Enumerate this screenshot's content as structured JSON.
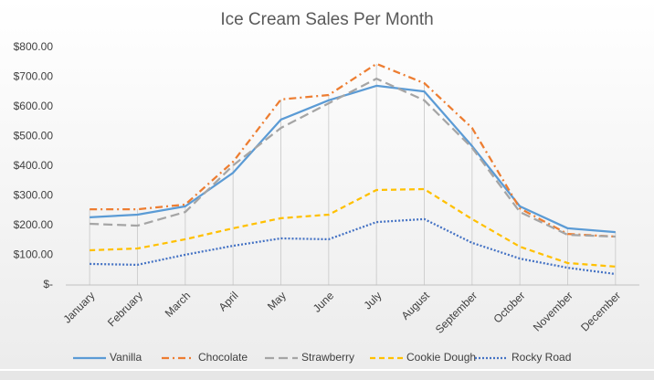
{
  "chart_data": {
    "type": "line",
    "title": "Ice Cream Sales Per Month",
    "categories": [
      "January",
      "February",
      "March",
      "April",
      "May",
      "June",
      "July",
      "August",
      "September",
      "October",
      "November",
      "December"
    ],
    "series": [
      {
        "name": "Vanilla",
        "color": "#5b9bd5",
        "dash": "solid",
        "values": [
          228,
          237,
          265,
          378,
          557,
          622,
          671,
          652,
          468,
          265,
          191,
          178
        ]
      },
      {
        "name": "Chocolate",
        "color": "#ed7d31",
        "dash": "dash-dot",
        "values": [
          255,
          255,
          271,
          415,
          625,
          640,
          745,
          680,
          529,
          258,
          172,
          163
        ]
      },
      {
        "name": "Strawberry",
        "color": "#a5a5a5",
        "dash": "long-dash",
        "values": [
          206,
          200,
          246,
          403,
          529,
          612,
          695,
          622,
          462,
          246,
          169,
          163
        ]
      },
      {
        "name": "Cookie Dough",
        "color": "#ffc000",
        "dash": "dash",
        "values": [
          117,
          123,
          154,
          191,
          225,
          237,
          320,
          323,
          222,
          129,
          74,
          62
        ]
      },
      {
        "name": "Rocky Road",
        "color": "#4472c4",
        "dash": "dot",
        "values": [
          71,
          68,
          102,
          132,
          157,
          154,
          212,
          222,
          142,
          89,
          58,
          37
        ]
      }
    ],
    "ylim": [
      0,
      800
    ],
    "yticks": [
      {
        "value": 0,
        "label": "$-"
      },
      {
        "value": 100,
        "label": "$100.00"
      },
      {
        "value": 200,
        "label": "$200.00"
      },
      {
        "value": 300,
        "label": "$300.00"
      },
      {
        "value": 400,
        "label": "$400.00"
      },
      {
        "value": 500,
        "label": "$500.00"
      },
      {
        "value": 600,
        "label": "$600.00"
      },
      {
        "value": 700,
        "label": "$700.00"
      },
      {
        "value": 800,
        "label": "$800.00"
      }
    ],
    "grid": false,
    "drop_lines": true,
    "legend": "bottom"
  }
}
